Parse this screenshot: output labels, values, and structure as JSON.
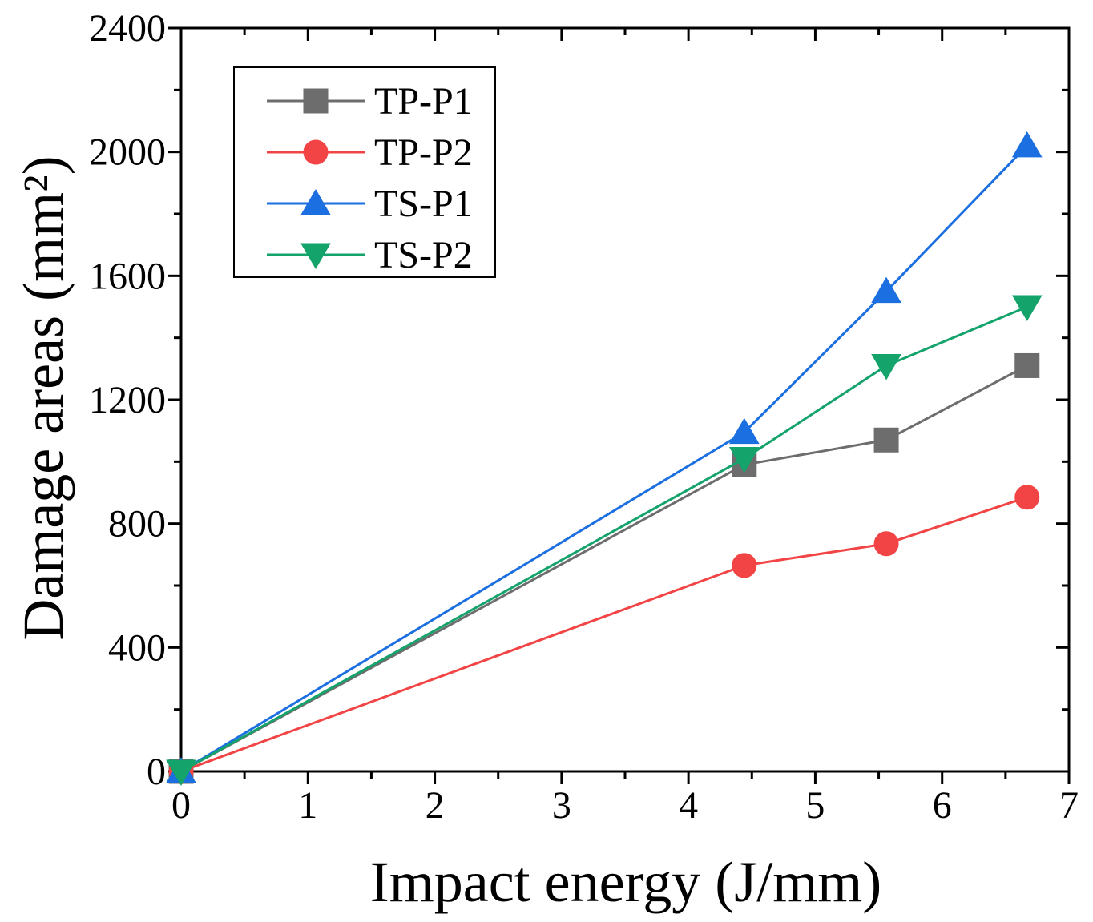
{
  "chart_data": {
    "type": "line",
    "title": "",
    "xlabel": "Impact energy (J/mm)",
    "ylabel": "Damage areas (mm²)",
    "xlim": [
      0,
      7
    ],
    "ylim": [
      0,
      2400
    ],
    "xticks": [
      0,
      1,
      2,
      3,
      4,
      5,
      6,
      7
    ],
    "yticks": [
      0,
      400,
      800,
      1200,
      1600,
      2000,
      2400
    ],
    "x_minor_step": 0.5,
    "y_minor_step": 200,
    "grid": false,
    "legend_position": "top-left",
    "x": [
      0,
      4.44,
      5.56,
      6.67
    ],
    "series": [
      {
        "name": "TP-P1",
        "marker": "square",
        "color": "#6d6d6d",
        "values": [
          0,
          990,
          1070,
          1310
        ]
      },
      {
        "name": "TP-P2",
        "marker": "circle",
        "color": "#f24444",
        "values": [
          0,
          665,
          735,
          885
        ]
      },
      {
        "name": "TS-P1",
        "marker": "triangle-up",
        "color": "#1b6fe0",
        "values": [
          0,
          1095,
          1550,
          2020
        ]
      },
      {
        "name": "TS-P2",
        "marker": "triangle-down",
        "color": "#13a36b",
        "values": [
          0,
          1010,
          1310,
          1500
        ]
      }
    ]
  }
}
